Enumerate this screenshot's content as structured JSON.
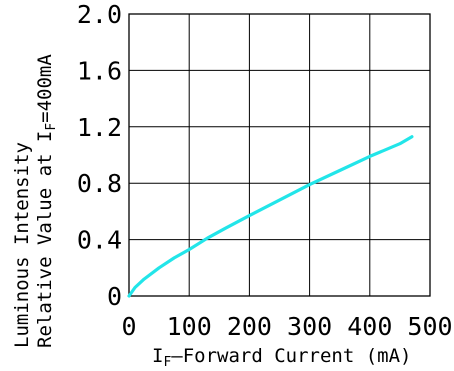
{
  "chart_data": {
    "type": "line",
    "title": "",
    "xlabel": "I_F–Forward Current (mA)",
    "xlabel_parts": {
      "main": "I",
      "sub": "F",
      "rest": "–Forward Current (mA)"
    },
    "ylabel_line1": "Luminous Intensity",
    "ylabel_line2_parts": {
      "main": "Relative Value at I",
      "sub": "F",
      "rest": "=400mA"
    },
    "xlim": [
      0,
      500
    ],
    "ylim": [
      0,
      2.0
    ],
    "x_ticks": [
      "0",
      "100",
      "200",
      "300",
      "400",
      "500"
    ],
    "y_ticks": [
      "0",
      "0.4",
      "0.8",
      "1.2",
      "1.6",
      "2.0"
    ],
    "grid": true,
    "series": [
      {
        "color": "#22e5e9",
        "x": [
          0,
          10,
          25,
          50,
          75,
          100,
          130,
          160,
          200,
          250,
          300,
          350,
          400,
          450,
          470
        ],
        "y": [
          0,
          0.06,
          0.12,
          0.2,
          0.27,
          0.33,
          0.41,
          0.48,
          0.57,
          0.68,
          0.79,
          0.89,
          0.99,
          1.08,
          1.13
        ]
      }
    ]
  }
}
